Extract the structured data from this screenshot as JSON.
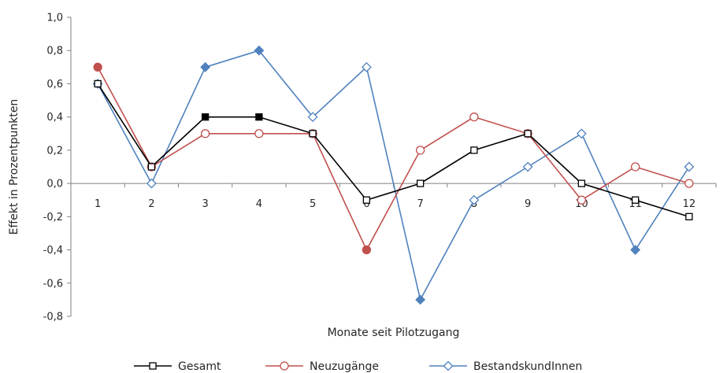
{
  "chart_data": {
    "type": "line",
    "title": "",
    "xlabel": "Monate seit Pilotzugang",
    "ylabel": "Effekt in Prozentpunkten",
    "x": [
      "1",
      "2",
      "3",
      "4",
      "5",
      "6",
      "7",
      "8",
      "9",
      "10",
      "11",
      "12"
    ],
    "ylim": [
      -0.8,
      1.0
    ],
    "yticks": [
      "-0,8",
      "-0,6",
      "-0,4",
      "-0,2",
      "0,0",
      "0,2",
      "0,4",
      "0,6",
      "0,8",
      "1,0"
    ],
    "grid": false,
    "legend": "bottom",
    "series": [
      {
        "name": "Gesamt",
        "color": "#000000",
        "marker": "square",
        "values": [
          0.6,
          0.1,
          0.4,
          0.4,
          0.3,
          -0.1,
          0.0,
          0.2,
          0.3,
          0.0,
          -0.1,
          -0.2
        ],
        "filled": [
          false,
          false,
          true,
          true,
          false,
          false,
          false,
          false,
          false,
          false,
          false,
          false
        ]
      },
      {
        "name": "Neuzugänge",
        "color": "#c0504d",
        "marker": "circle",
        "values": [
          0.7,
          0.1,
          0.3,
          0.3,
          0.3,
          -0.4,
          0.2,
          0.4,
          0.3,
          -0.1,
          0.1,
          0.0
        ],
        "filled": [
          true,
          false,
          false,
          false,
          false,
          true,
          false,
          false,
          false,
          false,
          false,
          false
        ]
      },
      {
        "name": "BestandskundInnen",
        "color": "#4f81bd",
        "marker": "diamond",
        "values": [
          0.6,
          0.0,
          0.7,
          0.8,
          0.4,
          0.7,
          -0.7,
          -0.1,
          0.1,
          0.3,
          -0.4,
          0.1
        ],
        "filled": [
          true,
          false,
          true,
          true,
          false,
          false,
          true,
          false,
          false,
          false,
          true,
          false
        ]
      }
    ]
  }
}
